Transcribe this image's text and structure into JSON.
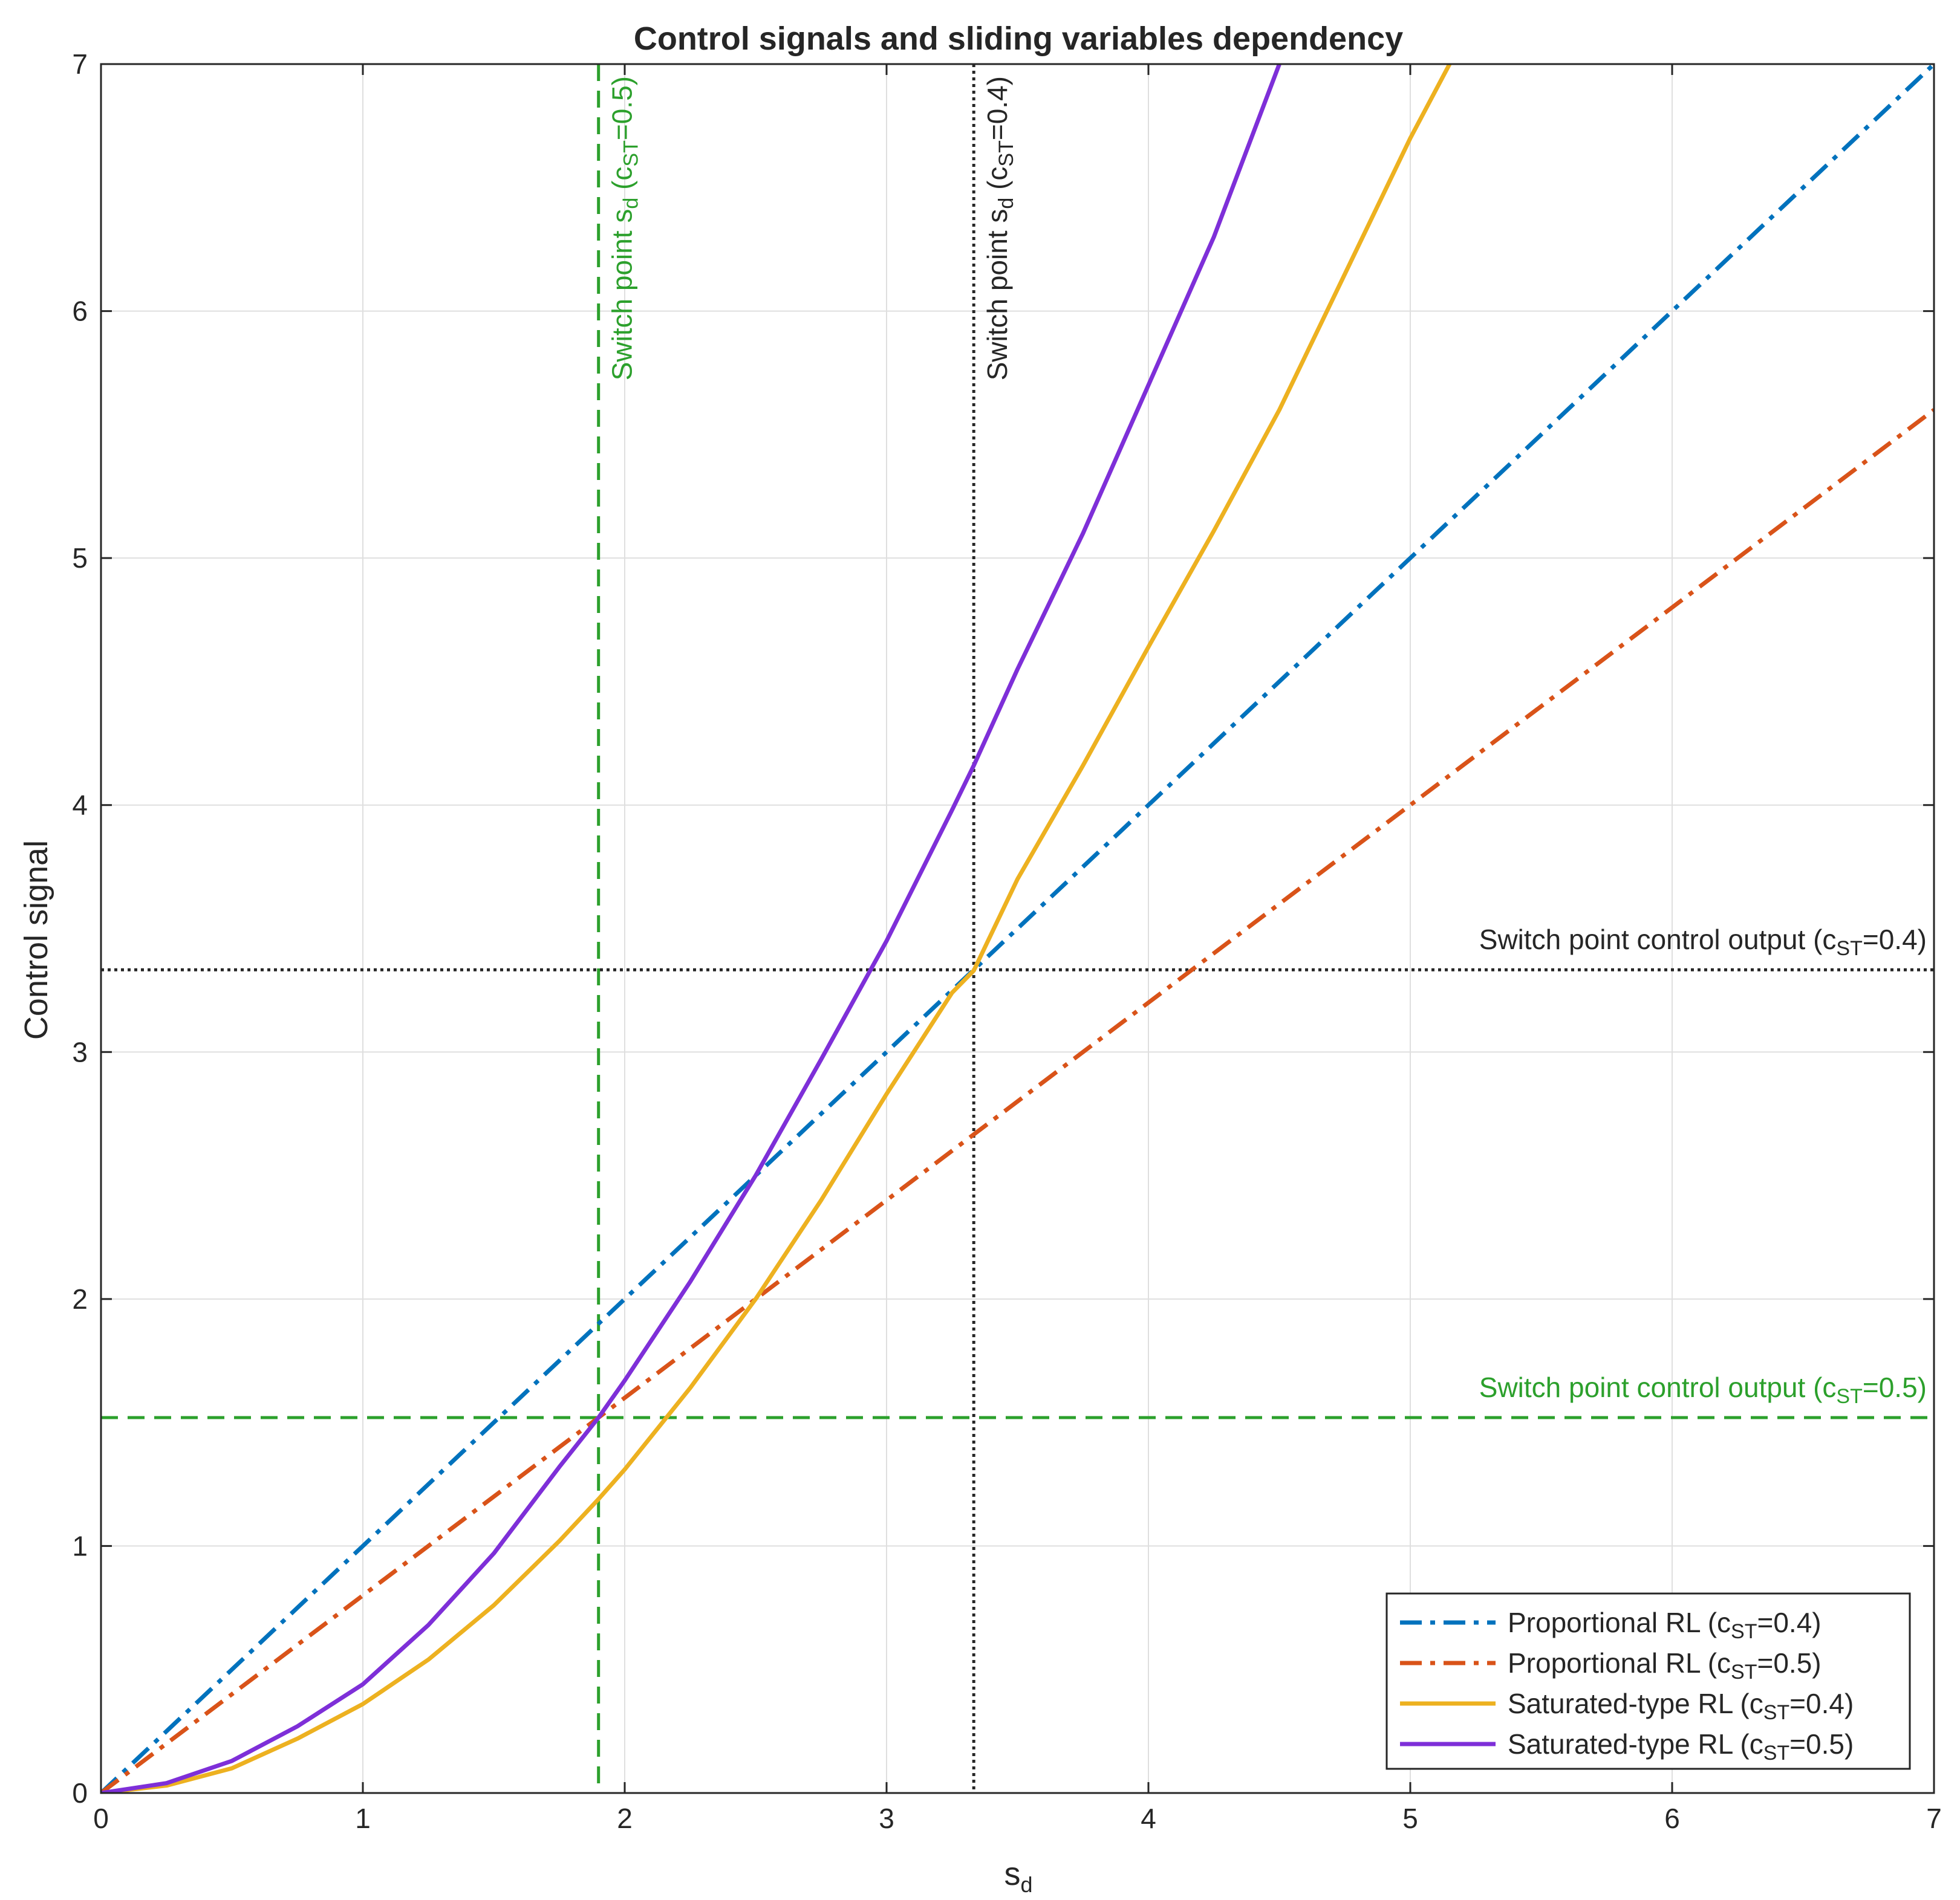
{
  "chart_data": {
    "type": "line",
    "title": "Control signals and sliding variables dependency",
    "xlabel": {
      "main": "s",
      "sub": "d"
    },
    "ylabel": "Control signal",
    "xlim": [
      0,
      7
    ],
    "ylim": [
      0,
      7
    ],
    "xticks": [
      "0",
      "1",
      "2",
      "3",
      "4",
      "5",
      "6",
      "7"
    ],
    "yticks": [
      "0",
      "1",
      "2",
      "3",
      "4",
      "5",
      "6",
      "7"
    ],
    "grid": true,
    "legend_position": "bottom-right",
    "series": [
      {
        "name": "Proportional  RL  (c_ST=0.4)",
        "legend": {
          "pre": "Proportional  RL  (c",
          "sub": "ST",
          "post": "=0.4)"
        },
        "color": "#0072BD",
        "style": "dashdot",
        "x": [
          0,
          7
        ],
        "y": [
          0,
          7
        ]
      },
      {
        "name": "Proportional  RL  (c_ST=0.5)",
        "legend": {
          "pre": "Proportional  RL  (c",
          "sub": "ST",
          "post": "=0.5)"
        },
        "color": "#D95319",
        "style": "dashdot",
        "x": [
          0,
          7
        ],
        "y": [
          0,
          5.6
        ]
      },
      {
        "name": "Saturated-type  RL  (c_ST=0.4)",
        "legend": {
          "pre": "Saturated-type  RL  (c",
          "sub": "ST",
          "post": "=0.4)"
        },
        "color": "#EDB120",
        "style": "solid",
        "x": [
          0,
          0.25,
          0.5,
          0.75,
          1.0,
          1.25,
          1.5,
          1.75,
          1.9,
          2.0,
          2.25,
          2.5,
          2.75,
          3.0,
          3.25,
          3.333,
          3.5,
          3.75,
          4.0,
          4.25,
          4.5,
          4.75,
          5.0,
          5.15
        ],
        "y": [
          0,
          0.03,
          0.1,
          0.22,
          0.36,
          0.54,
          0.76,
          1.02,
          1.19,
          1.31,
          1.64,
          2.0,
          2.4,
          2.83,
          3.24,
          3.33,
          3.7,
          4.16,
          4.64,
          5.11,
          5.6,
          6.15,
          6.7,
          7.0
        ]
      },
      {
        "name": "Saturated-type  RL  (c_ST=0.5)",
        "legend": {
          "pre": "Saturated-type  RL  (c",
          "sub": "ST",
          "post": "=0.5)"
        },
        "color": "#7E2FD8",
        "style": "solid",
        "x": [
          0,
          0.25,
          0.5,
          0.75,
          1.0,
          1.25,
          1.5,
          1.75,
          1.9,
          2.0,
          2.25,
          2.5,
          2.75,
          3.0,
          3.25,
          3.333,
          3.5,
          3.75,
          4.0,
          4.25,
          4.5
        ],
        "y": [
          0,
          0.04,
          0.13,
          0.27,
          0.44,
          0.68,
          0.97,
          1.32,
          1.52,
          1.67,
          2.07,
          2.5,
          2.97,
          3.45,
          3.98,
          4.16,
          4.55,
          5.1,
          5.7,
          6.3,
          7.0
        ]
      }
    ],
    "reference_lines": [
      {
        "orientation": "vertical",
        "value": 1.9,
        "color": "#2CA02C",
        "style": "dashed",
        "label": {
          "pre": "Switch  point  s",
          "sub": "d",
          "mid": "  (c",
          "sub2": "ST",
          "post": "=0.5)"
        }
      },
      {
        "orientation": "vertical",
        "value": 3.333,
        "color": "#262626",
        "style": "dotted",
        "label": {
          "pre": "Switch  point  s",
          "sub": "d",
          "mid": "  (c",
          "sub2": "ST",
          "post": "=0.4)"
        }
      },
      {
        "orientation": "horizontal",
        "value": 3.333,
        "color": "#262626",
        "style": "dotted",
        "label": {
          "pre": "Switch  point  control  output  (c",
          "sub": "ST",
          "post": "=0.4)"
        }
      },
      {
        "orientation": "horizontal",
        "value": 1.52,
        "color": "#2CA02C",
        "style": "dashed",
        "label": {
          "pre": "Switch  point  control  output  (c",
          "sub": "ST",
          "post": "=0.5)"
        }
      }
    ]
  }
}
